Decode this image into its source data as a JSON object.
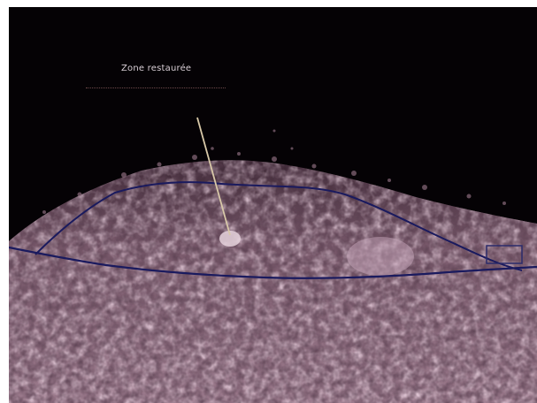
{
  "annotation": {
    "label": "Zone restaurée"
  },
  "colors": {
    "background_dark": "#050205",
    "tissue_light": "#c9a3b8",
    "tissue_mid": "#7d5a70",
    "boundary_line": "#1a1a5e",
    "pointer_line": "#d8c8a8"
  }
}
